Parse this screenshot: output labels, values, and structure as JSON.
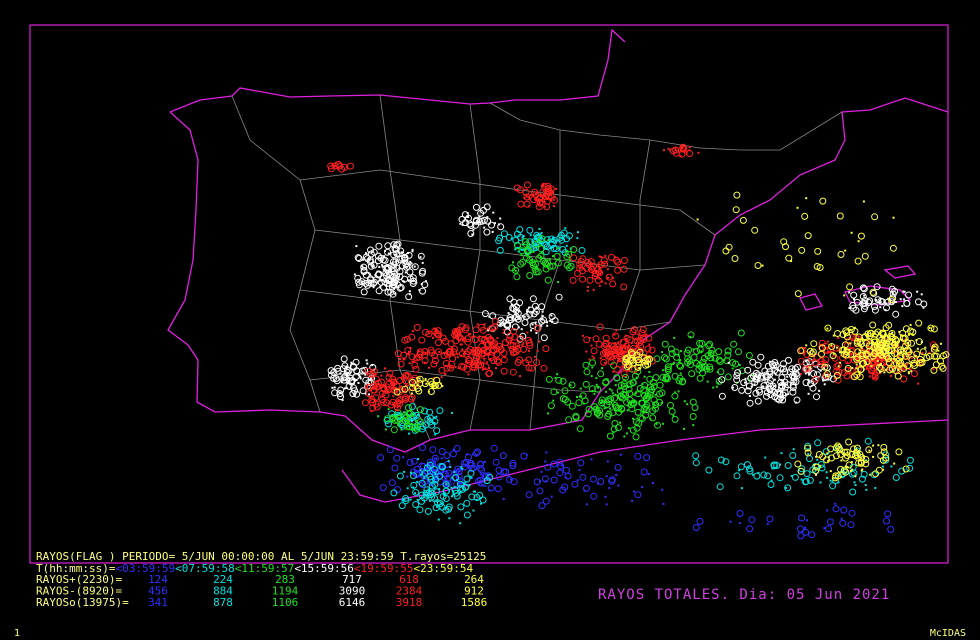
{
  "header": {
    "period": "RAYOS(FLAG ) PERIODO= 5/JUN 00:00:00 AL  5/JUN 23:59:59  T.rayos=25125",
    "time_label": "T(hh:mm:ss)=",
    "time_ranges": [
      "<03:59:59",
      "<07:59:58",
      "<11:59:57",
      "<15:59:56",
      "<19:59:55",
      "<23:59:54"
    ]
  },
  "table": {
    "rows": [
      {
        "label": "RAYOS+(2230)=",
        "values": [
          "124",
          "224",
          "283",
          "717",
          "618",
          "264"
        ]
      },
      {
        "label": "RAYOS-(8920)=",
        "values": [
          "456",
          "884",
          "1194",
          "3090",
          "2384",
          "912"
        ]
      },
      {
        "label": "RAYOSo(13975)=",
        "values": [
          "341",
          "878",
          "1106",
          "6146",
          "3918",
          "1586"
        ]
      }
    ]
  },
  "title": "RAYOS TOTALES. Dia: 05 Jun 2021",
  "footer": {
    "frame": "1",
    "brand": "McIDAS"
  }
}
